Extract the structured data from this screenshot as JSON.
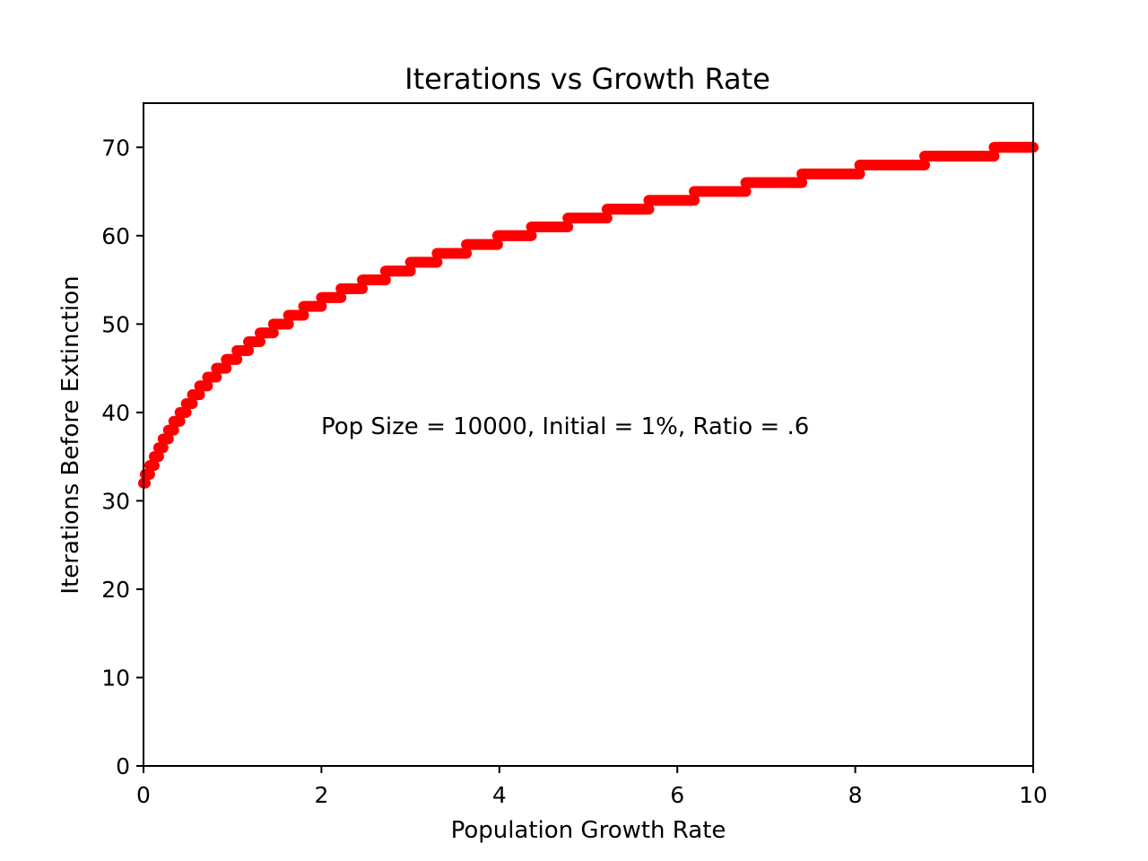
{
  "chart_data": {
    "type": "scatter",
    "title": "Iterations vs Growth Rate",
    "xlabel": "Population Growth Rate",
    "ylabel": "Iterations Before Extinction",
    "xlim": [
      0,
      10
    ],
    "ylim": [
      0,
      75
    ],
    "xticks": [
      0,
      2,
      4,
      6,
      8,
      10
    ],
    "yticks": [
      0,
      10,
      20,
      30,
      40,
      50,
      60,
      70
    ],
    "grid": false,
    "annotation": {
      "text": "Pop Size = 10000, Initial = 1%, Ratio = .6",
      "x": 2.0,
      "y": 38.5
    },
    "series": [
      {
        "color": "#ff0000",
        "marker": "circle",
        "steps": [
          {
            "y": 32,
            "x_start": 0.0,
            "x_end": 0.02
          },
          {
            "y": 33,
            "x_start": 0.02,
            "x_end": 0.07
          },
          {
            "y": 34,
            "x_start": 0.07,
            "x_end": 0.12
          },
          {
            "y": 35,
            "x_start": 0.12,
            "x_end": 0.17
          },
          {
            "y": 36,
            "x_start": 0.17,
            "x_end": 0.22
          },
          {
            "y": 37,
            "x_start": 0.22,
            "x_end": 0.28
          },
          {
            "y": 38,
            "x_start": 0.28,
            "x_end": 0.34
          },
          {
            "y": 39,
            "x_start": 0.34,
            "x_end": 0.41
          },
          {
            "y": 40,
            "x_start": 0.41,
            "x_end": 0.48
          },
          {
            "y": 41,
            "x_start": 0.48,
            "x_end": 0.55
          },
          {
            "y": 42,
            "x_start": 0.55,
            "x_end": 0.63
          },
          {
            "y": 43,
            "x_start": 0.63,
            "x_end": 0.72
          },
          {
            "y": 44,
            "x_start": 0.72,
            "x_end": 0.82
          },
          {
            "y": 45,
            "x_start": 0.82,
            "x_end": 0.93
          },
          {
            "y": 46,
            "x_start": 0.93,
            "x_end": 1.05
          },
          {
            "y": 47,
            "x_start": 1.05,
            "x_end": 1.18
          },
          {
            "y": 48,
            "x_start": 1.18,
            "x_end": 1.31
          },
          {
            "y": 49,
            "x_start": 1.31,
            "x_end": 1.46
          },
          {
            "y": 50,
            "x_start": 1.46,
            "x_end": 1.63
          },
          {
            "y": 51,
            "x_start": 1.63,
            "x_end": 1.8
          },
          {
            "y": 52,
            "x_start": 1.8,
            "x_end": 2.0
          },
          {
            "y": 53,
            "x_start": 2.0,
            "x_end": 2.22
          },
          {
            "y": 54,
            "x_start": 2.22,
            "x_end": 2.46
          },
          {
            "y": 55,
            "x_start": 2.46,
            "x_end": 2.72
          },
          {
            "y": 56,
            "x_start": 2.72,
            "x_end": 3.0
          },
          {
            "y": 57,
            "x_start": 3.0,
            "x_end": 3.3
          },
          {
            "y": 58,
            "x_start": 3.3,
            "x_end": 3.63
          },
          {
            "y": 59,
            "x_start": 3.63,
            "x_end": 3.98
          },
          {
            "y": 60,
            "x_start": 3.98,
            "x_end": 4.36
          },
          {
            "y": 61,
            "x_start": 4.36,
            "x_end": 4.77
          },
          {
            "y": 62,
            "x_start": 4.77,
            "x_end": 5.21
          },
          {
            "y": 63,
            "x_start": 5.21,
            "x_end": 5.68
          },
          {
            "y": 64,
            "x_start": 5.68,
            "x_end": 6.19
          },
          {
            "y": 65,
            "x_start": 6.19,
            "x_end": 6.77
          },
          {
            "y": 66,
            "x_start": 6.77,
            "x_end": 7.4
          },
          {
            "y": 67,
            "x_start": 7.4,
            "x_end": 8.05
          },
          {
            "y": 68,
            "x_start": 8.05,
            "x_end": 8.78
          },
          {
            "y": 69,
            "x_start": 8.78,
            "x_end": 9.56
          },
          {
            "y": 70,
            "x_start": 9.56,
            "x_end": 10.0
          }
        ]
      }
    ]
  }
}
